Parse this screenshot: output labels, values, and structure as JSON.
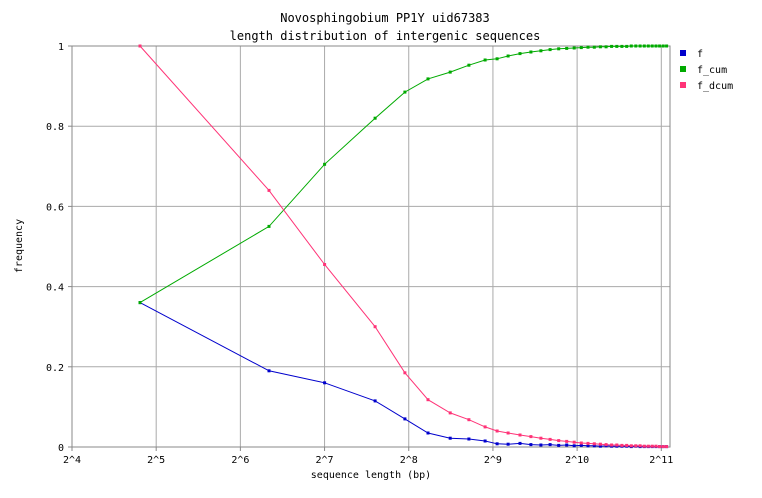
{
  "chart_data": {
    "type": "line",
    "title": "Novosphingobium PP1Y uid67383",
    "subtitle": "length distribution of intergenic sequences",
    "xlabel": "sequence length (bp)",
    "ylabel": "frequency",
    "x_scale": "log2",
    "xlim": [
      16,
      2200
    ],
    "ylim": [
      0,
      1
    ],
    "grid": true,
    "legend_position": "top-right",
    "x_ticks": [
      {
        "value": 16,
        "label": "2^4"
      },
      {
        "value": 32,
        "label": "2^5"
      },
      {
        "value": 64,
        "label": "2^6"
      },
      {
        "value": 128,
        "label": "2^7"
      },
      {
        "value": 256,
        "label": "2^8"
      },
      {
        "value": 512,
        "label": "2^9"
      },
      {
        "value": 1024,
        "label": "2^10"
      },
      {
        "value": 2048,
        "label": "2^11"
      }
    ],
    "y_ticks": [
      {
        "value": 0,
        "label": "0"
      },
      {
        "value": 0.2,
        "label": "0.2"
      },
      {
        "value": 0.4,
        "label": "0.4"
      },
      {
        "value": 0.6,
        "label": "0.6"
      },
      {
        "value": 0.8,
        "label": "0.8"
      },
      {
        "value": 1,
        "label": "1"
      }
    ],
    "series": [
      {
        "name": "f",
        "color": "#0000cc",
        "x": [
          28,
          81,
          128,
          194,
          248,
          300,
          360,
          420,
          480,
          530,
          580,
          640,
          700,
          760,
          820,
          880,
          940,
          1000,
          1060,
          1120,
          1180,
          1240,
          1300,
          1360,
          1420,
          1480,
          1540,
          1600,
          1660,
          1720,
          1780,
          1840,
          1900,
          1960,
          2020,
          2080,
          2140
        ],
        "y": [
          0.36,
          0.19,
          0.16,
          0.115,
          0.07,
          0.035,
          0.022,
          0.02,
          0.015,
          0.008,
          0.007,
          0.009,
          0.006,
          0.005,
          0.006,
          0.004,
          0.005,
          0.003,
          0.004,
          0.003,
          0.003,
          0.002,
          0.003,
          0.002,
          0.002,
          0.002,
          0.002,
          0.001,
          0.002,
          0.001,
          0.001,
          0.001,
          0.001,
          0.001,
          0.001,
          0.001,
          0.001
        ]
      },
      {
        "name": "f_cum",
        "color": "#00aa00",
        "x": [
          28,
          81,
          128,
          194,
          248,
          300,
          360,
          420,
          480,
          530,
          580,
          640,
          700,
          760,
          820,
          880,
          940,
          1000,
          1060,
          1120,
          1180,
          1240,
          1300,
          1360,
          1420,
          1480,
          1540,
          1600,
          1660,
          1720,
          1780,
          1840,
          1900,
          1960,
          2020,
          2080,
          2140
        ],
        "y": [
          0.36,
          0.55,
          0.705,
          0.82,
          0.885,
          0.918,
          0.935,
          0.952,
          0.965,
          0.968,
          0.975,
          0.981,
          0.985,
          0.988,
          0.991,
          0.993,
          0.994,
          0.995,
          0.996,
          0.997,
          0.997,
          0.998,
          0.998,
          0.999,
          0.999,
          0.999,
          0.999,
          1,
          1,
          1,
          1,
          1,
          1,
          1,
          1,
          1,
          1
        ]
      },
      {
        "name": "f_dcum",
        "color": "#ff3377",
        "x": [
          28,
          81,
          128,
          194,
          248,
          300,
          360,
          420,
          480,
          530,
          580,
          640,
          700,
          760,
          820,
          880,
          940,
          1000,
          1060,
          1120,
          1180,
          1240,
          1300,
          1360,
          1420,
          1480,
          1540,
          1600,
          1660,
          1720,
          1780,
          1840,
          1900,
          1960,
          2020,
          2080,
          2140
        ],
        "y": [
          1,
          0.64,
          0.455,
          0.3,
          0.185,
          0.118,
          0.085,
          0.068,
          0.05,
          0.04,
          0.035,
          0.03,
          0.026,
          0.022,
          0.019,
          0.016,
          0.014,
          0.012,
          0.01,
          0.009,
          0.008,
          0.007,
          0.006,
          0.005,
          0.005,
          0.004,
          0.004,
          0.003,
          0.003,
          0.003,
          0.002,
          0.002,
          0.002,
          0.002,
          0.001,
          0.001,
          0.001
        ]
      }
    ]
  }
}
